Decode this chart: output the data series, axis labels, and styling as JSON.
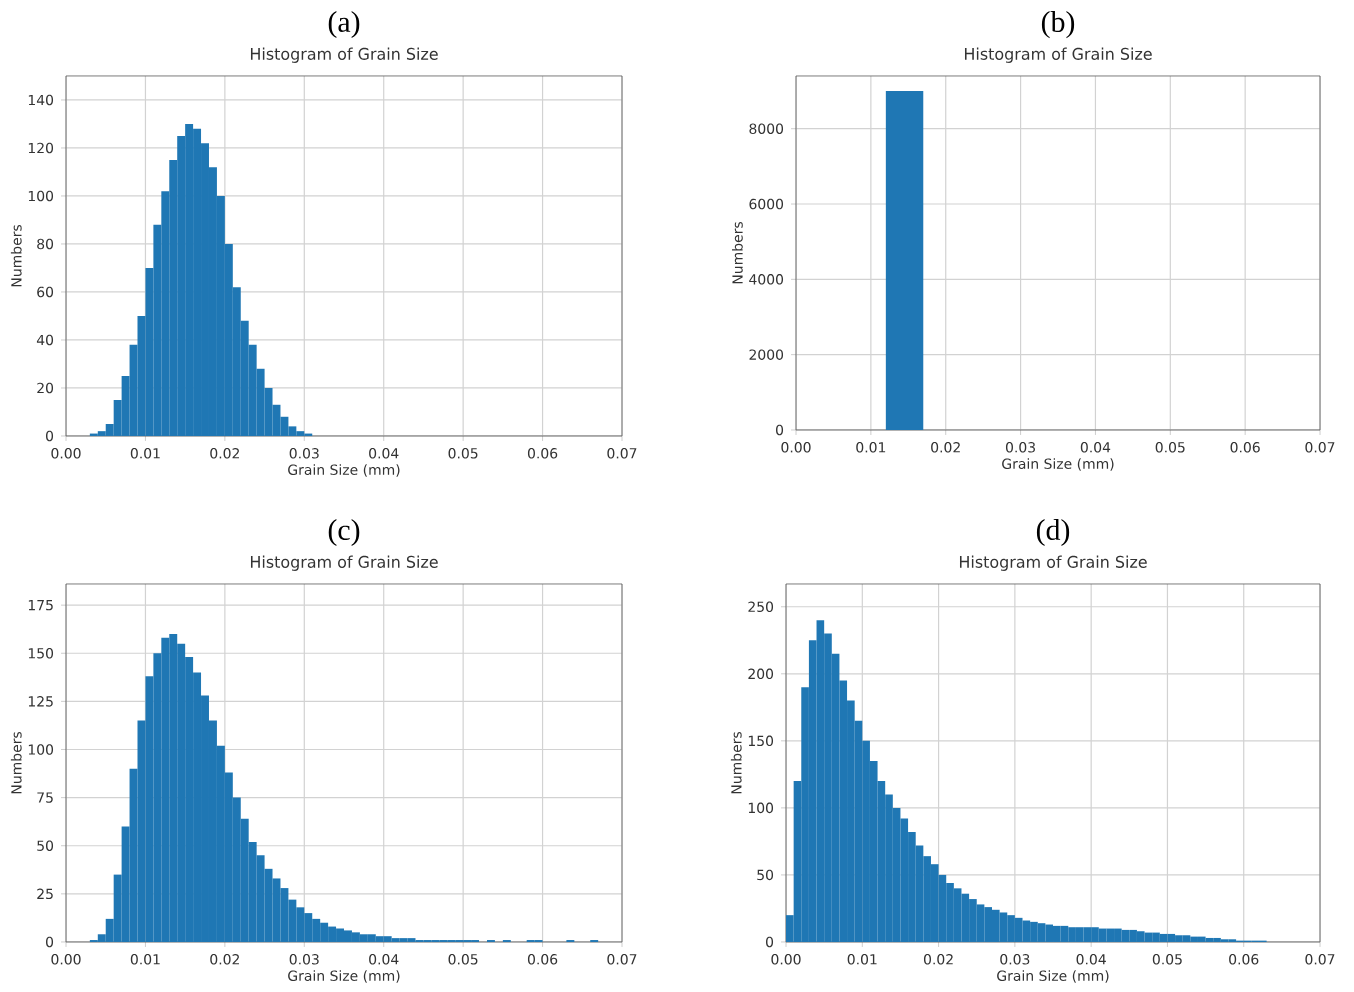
{
  "chart_data": [
    {
      "type": "histogram",
      "title": "(a)",
      "subtitle": "Histogram of Grain Size",
      "xlabel": "Grain Size (mm)",
      "ylabel": "Numbers",
      "color": "#1f77b4",
      "grid": true,
      "bins": [
        0.003,
        0.004,
        0.005,
        0.006,
        0.007,
        0.008,
        0.009,
        0.01,
        0.011,
        0.012,
        0.013,
        0.014,
        0.015,
        0.016,
        0.017,
        0.018,
        0.019,
        0.02,
        0.021,
        0.022,
        0.023,
        0.024,
        0.025,
        0.026,
        0.027,
        0.028,
        0.029,
        0.03,
        0.031
      ],
      "values": [
        1,
        2,
        5,
        15,
        25,
        38,
        50,
        70,
        88,
        102,
        115,
        125,
        130,
        128,
        122,
        112,
        100,
        80,
        62,
        48,
        38,
        28,
        20,
        13,
        8,
        4,
        2,
        1
      ],
      "xlim": [
        0,
        0.07
      ],
      "ylim": [
        0,
        150
      ],
      "xticks": [
        {
          "value": 0,
          "label": "0.00"
        },
        {
          "value": 0.01,
          "label": "0.01"
        },
        {
          "value": 0.02,
          "label": "0.02"
        },
        {
          "value": 0.03,
          "label": "0.03"
        },
        {
          "value": 0.04,
          "label": "0.04"
        },
        {
          "value": 0.05,
          "label": "0.05"
        },
        {
          "value": 0.06,
          "label": "0.06"
        },
        {
          "value": 0.07,
          "label": "0.07"
        }
      ],
      "yticks": [
        0,
        20,
        40,
        60,
        80,
        100,
        120,
        140
      ]
    },
    {
      "type": "histogram",
      "title": "(b)",
      "subtitle": "Histogram of Grain Size",
      "xlabel": "Grain Size (mm)",
      "ylabel": "Numbers",
      "color": "#1f77b4",
      "grid": true,
      "bins": [
        0.012,
        0.017
      ],
      "values": [
        9000
      ],
      "xlim": [
        0,
        0.07
      ],
      "ylim": [
        0,
        9400
      ],
      "xticks": [
        {
          "value": 0,
          "label": "0.00"
        },
        {
          "value": 0.01,
          "label": "0.01"
        },
        {
          "value": 0.02,
          "label": "0.02"
        },
        {
          "value": 0.03,
          "label": "0.03"
        },
        {
          "value": 0.04,
          "label": "0.04"
        },
        {
          "value": 0.05,
          "label": "0.05"
        },
        {
          "value": 0.06,
          "label": "0.06"
        },
        {
          "value": 0.07,
          "label": "0.07"
        }
      ],
      "yticks": [
        0,
        2000,
        4000,
        6000,
        8000
      ]
    },
    {
      "type": "histogram",
      "title": "(c)",
      "subtitle": "Histogram of Grain Size",
      "xlabel": "Grain Size (mm)",
      "ylabel": "Numbers",
      "color": "#1f77b4",
      "grid": true,
      "bins": [
        0.003,
        0.004,
        0.005,
        0.006,
        0.007,
        0.008,
        0.009,
        0.01,
        0.011,
        0.012,
        0.013,
        0.014,
        0.015,
        0.016,
        0.017,
        0.018,
        0.019,
        0.02,
        0.021,
        0.022,
        0.023,
        0.024,
        0.025,
        0.026,
        0.027,
        0.028,
        0.029,
        0.03,
        0.031,
        0.032,
        0.033,
        0.034,
        0.035,
        0.036,
        0.037,
        0.038,
        0.039,
        0.04,
        0.041,
        0.042,
        0.043,
        0.044,
        0.045,
        0.046,
        0.047,
        0.048,
        0.049,
        0.05,
        0.051,
        0.052,
        0.053,
        0.054,
        0.055,
        0.056,
        0.057,
        0.058,
        0.059,
        0.06,
        0.061,
        0.062,
        0.063,
        0.064,
        0.065,
        0.066,
        0.067,
        0.068
      ],
      "values": [
        1,
        4,
        12,
        35,
        60,
        90,
        115,
        138,
        150,
        158,
        160,
        155,
        148,
        140,
        128,
        115,
        102,
        88,
        75,
        64,
        52,
        45,
        38,
        33,
        28,
        22,
        18,
        15,
        12,
        10,
        8,
        7,
        6,
        5,
        4,
        4,
        3,
        3,
        2,
        2,
        2,
        1,
        1,
        1,
        1,
        1,
        1,
        1,
        1,
        0,
        1,
        0,
        1,
        0,
        0,
        1,
        1,
        0,
        0,
        0,
        1,
        0,
        0,
        1,
        0
      ],
      "xlim": [
        0,
        0.07
      ],
      "ylim": [
        0,
        186
      ],
      "xticks": [
        {
          "value": 0,
          "label": "0.00"
        },
        {
          "value": 0.01,
          "label": "0.01"
        },
        {
          "value": 0.02,
          "label": "0.02"
        },
        {
          "value": 0.03,
          "label": "0.03"
        },
        {
          "value": 0.04,
          "label": "0.04"
        },
        {
          "value": 0.05,
          "label": "0.05"
        },
        {
          "value": 0.06,
          "label": "0.06"
        },
        {
          "value": 0.07,
          "label": "0.07"
        }
      ],
      "yticks": [
        0,
        25,
        50,
        75,
        100,
        125,
        150,
        175
      ]
    },
    {
      "type": "histogram",
      "title": "(d)",
      "subtitle": "Histogram of Grain Size",
      "xlabel": "Grain Size (mm)",
      "ylabel": "Numbers",
      "color": "#1f77b4",
      "grid": true,
      "bins": [
        0.0,
        0.001,
        0.002,
        0.003,
        0.004,
        0.005,
        0.006,
        0.007,
        0.008,
        0.009,
        0.01,
        0.011,
        0.012,
        0.013,
        0.014,
        0.015,
        0.016,
        0.017,
        0.018,
        0.019,
        0.02,
        0.021,
        0.022,
        0.023,
        0.024,
        0.025,
        0.026,
        0.027,
        0.028,
        0.029,
        0.03,
        0.031,
        0.032,
        0.033,
        0.034,
        0.035,
        0.036,
        0.037,
        0.038,
        0.039,
        0.04,
        0.041,
        0.042,
        0.043,
        0.044,
        0.045,
        0.046,
        0.047,
        0.048,
        0.049,
        0.05,
        0.051,
        0.052,
        0.053,
        0.054,
        0.055,
        0.056,
        0.057,
        0.058,
        0.059,
        0.06,
        0.061,
        0.062,
        0.063
      ],
      "values": [
        20,
        120,
        190,
        225,
        240,
        230,
        215,
        195,
        180,
        165,
        150,
        135,
        120,
        110,
        100,
        92,
        82,
        72,
        64,
        58,
        50,
        44,
        40,
        36,
        32,
        28,
        26,
        24,
        22,
        20,
        18,
        16,
        15,
        14,
        13,
        12,
        12,
        11,
        11,
        11,
        11,
        10,
        10,
        10,
        9,
        9,
        8,
        7,
        7,
        6,
        6,
        5,
        5,
        4,
        4,
        3,
        3,
        2,
        2,
        1,
        1,
        1,
        1
      ],
      "xlim": [
        0,
        0.07
      ],
      "ylim": [
        0,
        267
      ],
      "xticks": [
        {
          "value": 0,
          "label": "0.00"
        },
        {
          "value": 0.01,
          "label": "0.01"
        },
        {
          "value": 0.02,
          "label": "0.02"
        },
        {
          "value": 0.03,
          "label": "0.03"
        },
        {
          "value": 0.04,
          "label": "0.04"
        },
        {
          "value": 0.05,
          "label": "0.05"
        },
        {
          "value": 0.06,
          "label": "0.06"
        },
        {
          "value": 0.07,
          "label": "0.07"
        }
      ],
      "yticks": [
        0,
        50,
        100,
        150,
        200,
        250
      ]
    }
  ]
}
